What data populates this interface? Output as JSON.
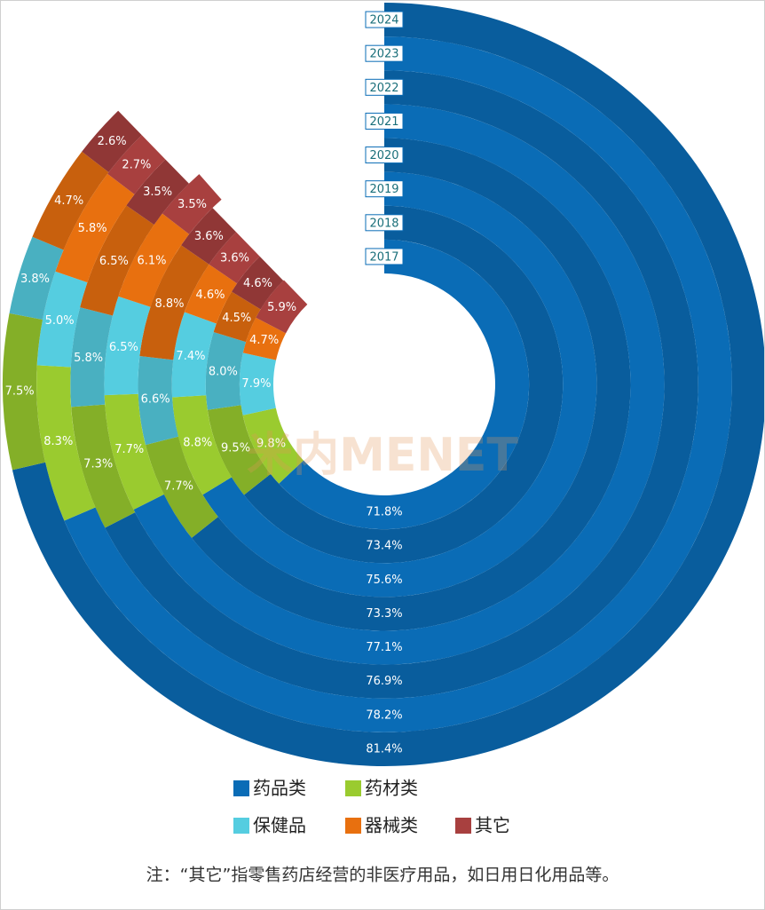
{
  "chart_data": {
    "type": "radial_bar",
    "categories": [
      "2017",
      "2018",
      "2019",
      "2020",
      "2021",
      "2022",
      "2023",
      "2024"
    ],
    "thetalim": [
      0,
      114
    ],
    "series": [
      {
        "name": "药品类",
        "color": "#0a6cb6",
        "values": [
          71.8,
          73.4,
          75.6,
          73.3,
          77.1,
          76.9,
          78.2,
          81.4
        ],
        "value_labels": [
          "71.8%",
          "73.4%",
          "75.6%",
          "73.3%",
          "77.1%",
          "76.9%",
          "78.2%",
          "81.4%"
        ]
      },
      {
        "name": "药材类",
        "color": "#9acb2f",
        "values": [
          9.8,
          9.5,
          8.8,
          7.7,
          7.7,
          7.3,
          8.3,
          7.5
        ],
        "value_labels": [
          "9.8%",
          "9.5%",
          "8.8%",
          "7.7%",
          "7.7%",
          "7.3%",
          "8.3%",
          "7.5%"
        ]
      },
      {
        "name": "保健品",
        "color": "#55cde0",
        "values": [
          7.9,
          8.0,
          7.4,
          6.6,
          6.5,
          5.8,
          5.0,
          3.8
        ],
        "value_labels": [
          "7.9%",
          "8.0%",
          "7.4%",
          "6.6%",
          "6.5%",
          "5.8%",
          "5.0%",
          "3.8%"
        ]
      },
      {
        "name": "器械类",
        "color": "#e8700f",
        "values": [
          4.7,
          4.5,
          4.6,
          8.8,
          6.1,
          6.5,
          5.8,
          4.7
        ],
        "value_labels": [
          "4.7%",
          "4.5%",
          "4.6%",
          "8.8%",
          "6.1%",
          "6.5%",
          "5.8%",
          "4.7%"
        ]
      },
      {
        "name": "其它",
        "color": "#a8403f",
        "values": [
          5.9,
          4.6,
          3.6,
          3.6,
          3.5,
          3.5,
          2.7,
          2.6
        ],
        "value_labels": [
          "5.9%",
          "4.6%",
          "3.6%",
          "3.6%",
          "3.5%",
          "3.5%",
          "2.7%",
          "2.6%"
        ]
      }
    ],
    "watermark": "米内MENET",
    "note": "注：“其它”指零售药店经营的非医疗用品，如日用日化用品等。"
  }
}
